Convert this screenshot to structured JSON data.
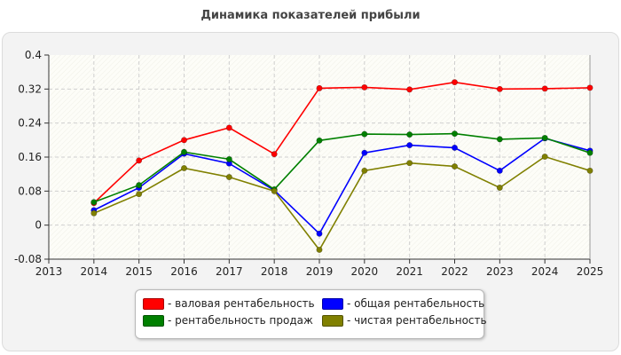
{
  "chart_data": {
    "type": "line",
    "title": "Динамика показателей прибыли",
    "xlabel": "",
    "ylabel": "",
    "x": [
      2013,
      2014,
      2015,
      2016,
      2017,
      2018,
      2019,
      2020,
      2021,
      2022,
      2023,
      2024,
      2025
    ],
    "x_tick_labels": [
      "2013",
      "2014",
      "2015",
      "2016",
      "2017",
      "2018",
      "2019",
      "2020",
      "2021",
      "2022",
      "2023",
      "2024",
      "2025"
    ],
    "xlim": [
      2013,
      2025
    ],
    "ylim": [
      -0.08,
      0.4
    ],
    "y_tick_labels": [
      "-0.08",
      "0",
      "0.08",
      "0.16",
      "0.24",
      "0.32",
      "0.4"
    ],
    "y_ticks": [
      -0.08,
      0,
      0.08,
      0.16,
      0.24,
      0.32,
      0.4
    ],
    "grid": true,
    "legend_position": "bottom",
    "series": [
      {
        "name": "- валовая рентабельность",
        "color": "#ff0000",
        "x": [
          2014,
          2015,
          2016,
          2017,
          2018,
          2019,
          2020,
          2021,
          2022,
          2023,
          2024,
          2025
        ],
        "values": [
          0.052,
          0.152,
          0.2,
          0.229,
          0.167,
          0.322,
          0.324,
          0.319,
          0.336,
          0.32,
          0.321,
          0.323
        ]
      },
      {
        "name": "- общая рентабельность",
        "color": "#0000ff",
        "x": [
          2014,
          2015,
          2016,
          2017,
          2018,
          2019,
          2020,
          2021,
          2022,
          2023,
          2024,
          2025
        ],
        "values": [
          0.035,
          0.088,
          0.168,
          0.145,
          0.082,
          -0.02,
          0.17,
          0.188,
          0.182,
          0.128,
          0.204,
          0.175
        ]
      },
      {
        "name": "- рентабельность продаж",
        "color": "#008000",
        "x": [
          2014,
          2015,
          2016,
          2017,
          2018,
          2019,
          2020,
          2021,
          2022,
          2023,
          2024,
          2025
        ],
        "values": [
          0.054,
          0.094,
          0.172,
          0.155,
          0.084,
          0.199,
          0.214,
          0.213,
          0.215,
          0.202,
          0.205,
          0.17
        ]
      },
      {
        "name": "- чистая рентабельность",
        "color": "#808000",
        "x": [
          2014,
          2015,
          2016,
          2017,
          2018,
          2019,
          2020,
          2021,
          2022,
          2023,
          2024,
          2025
        ],
        "values": [
          0.028,
          0.073,
          0.134,
          0.113,
          0.08,
          -0.058,
          0.128,
          0.146,
          0.138,
          0.088,
          0.161,
          0.128
        ]
      }
    ]
  }
}
